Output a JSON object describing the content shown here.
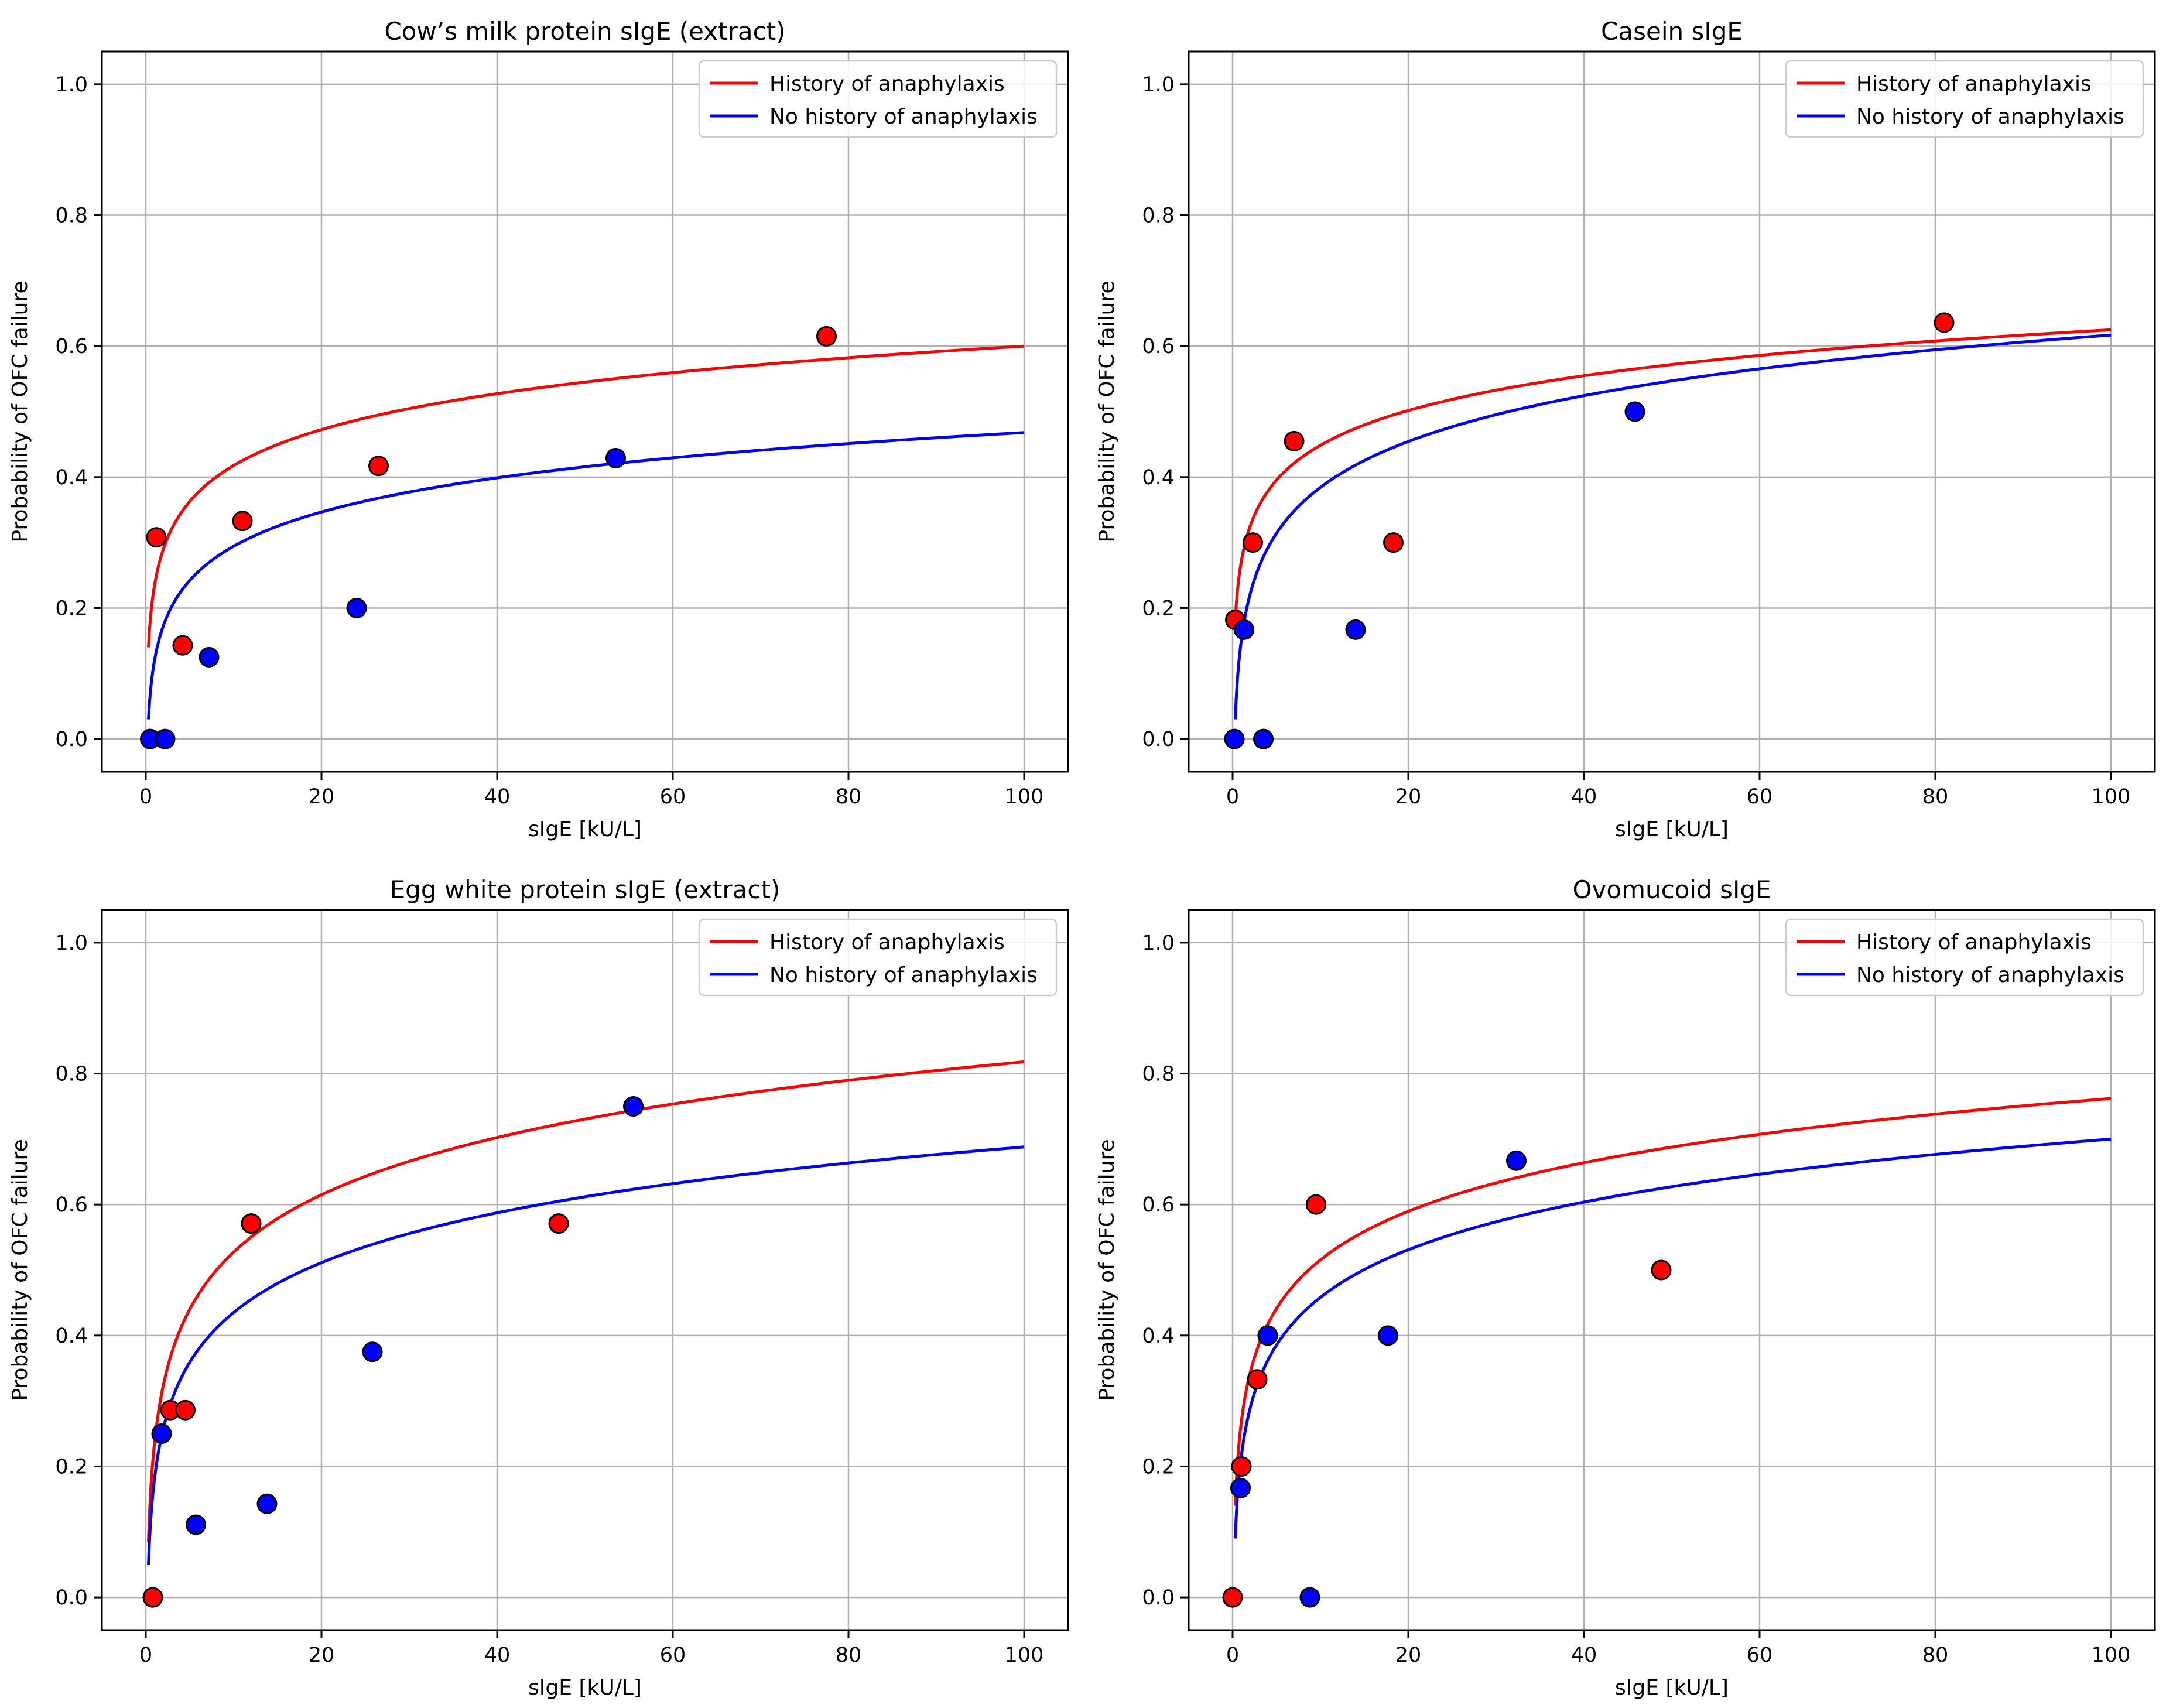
{
  "legend_labels": [
    "History of anaphylaxis",
    "No history of anaphylaxis"
  ],
  "colors": {
    "anaphylaxis": "#ff0000",
    "no_anaphylaxis": "#0000ff",
    "grid": "#b0b0b0",
    "marker_edge": "#000000"
  },
  "chart_data": [
    {
      "type": "scatter",
      "title": "Cow’s milk protein sIgE (extract)",
      "xlabel": "sIgE [kU/L]",
      "ylabel": "Probability of OFC failure",
      "xlim": [
        -5,
        105
      ],
      "ylim": [
        -0.05,
        1.05
      ],
      "xticks": [
        0,
        20,
        40,
        60,
        80,
        100
      ],
      "yticks": [
        0.0,
        0.2,
        0.4,
        0.6,
        0.8,
        1.0
      ],
      "grid": true,
      "legend_position": "top-right",
      "series": [
        {
          "name": "History of anaphylaxis",
          "color": "#ff0000",
          "points": [
            [
              1.2,
              0.308
            ],
            [
              4.2,
              0.143
            ],
            [
              11.0,
              0.333
            ],
            [
              26.5,
              0.417
            ],
            [
              77.5,
              0.615
            ]
          ],
          "curve": {
            "x0": 0.3,
            "x1": 100,
            "y_at_x0": 0.14,
            "y_at_x1": 0.6
          }
        },
        {
          "name": "No history of anaphylaxis",
          "color": "#0000ff",
          "points": [
            [
              0.5,
              0.0
            ],
            [
              2.2,
              0.0
            ],
            [
              7.2,
              0.125
            ],
            [
              24.0,
              0.2
            ],
            [
              53.5,
              0.429
            ]
          ],
          "curve": {
            "x0": 0.3,
            "x1": 100,
            "y_at_x0": 0.03,
            "y_at_x1": 0.468
          }
        }
      ]
    },
    {
      "type": "scatter",
      "title": "Casein sIgE",
      "xlabel": "sIgE [kU/L]",
      "ylabel": "Probability of OFC failure",
      "xlim": [
        -5,
        105
      ],
      "ylim": [
        -0.05,
        1.05
      ],
      "xticks": [
        0,
        20,
        40,
        60,
        80,
        100
      ],
      "yticks": [
        0.0,
        0.2,
        0.4,
        0.6,
        0.8,
        1.0
      ],
      "grid": true,
      "legend_position": "top-right",
      "series": [
        {
          "name": "History of anaphylaxis",
          "color": "#ff0000",
          "points": [
            [
              0.3,
              0.182
            ],
            [
              2.3,
              0.3
            ],
            [
              7.0,
              0.455
            ],
            [
              18.3,
              0.3
            ],
            [
              81.0,
              0.636
            ]
          ],
          "curve": {
            "x0": 0.3,
            "x1": 100,
            "y_at_x0": 0.18,
            "y_at_x1": 0.625
          }
        },
        {
          "name": "No history of anaphylaxis",
          "color": "#0000ff",
          "points": [
            [
              0.2,
              0.0
            ],
            [
              1.3,
              0.167
            ],
            [
              3.5,
              0.0
            ],
            [
              14.0,
              0.167
            ],
            [
              45.8,
              0.5
            ]
          ],
          "curve": {
            "x0": 0.3,
            "x1": 100,
            "y_at_x0": 0.03,
            "y_at_x1": 0.617
          }
        }
      ]
    },
    {
      "type": "scatter",
      "title": "Egg white protein sIgE (extract)",
      "xlabel": "sIgE [kU/L]",
      "ylabel": "Probability of OFC failure",
      "xlim": [
        -5,
        105
      ],
      "ylim": [
        -0.05,
        1.05
      ],
      "xticks": [
        0,
        20,
        40,
        60,
        80,
        100
      ],
      "yticks": [
        0.0,
        0.2,
        0.4,
        0.6,
        0.8,
        1.0
      ],
      "grid": true,
      "legend_position": "top-right",
      "series": [
        {
          "name": "History of anaphylaxis",
          "color": "#ff0000",
          "points": [
            [
              0.8,
              0.0
            ],
            [
              2.8,
              0.286
            ],
            [
              4.5,
              0.286
            ],
            [
              12.0,
              0.571
            ],
            [
              47.0,
              0.571
            ]
          ],
          "curve": {
            "x0": 0.3,
            "x1": 100,
            "y_at_x0": 0.085,
            "y_at_x1": 0.818
          }
        },
        {
          "name": "No history of anaphylaxis",
          "color": "#0000ff",
          "points": [
            [
              1.8,
              0.25
            ],
            [
              5.7,
              0.111
            ],
            [
              13.8,
              0.143
            ],
            [
              25.8,
              0.375
            ],
            [
              55.5,
              0.75
            ]
          ],
          "curve": {
            "x0": 0.3,
            "x1": 100,
            "y_at_x0": 0.05,
            "y_at_x1": 0.688
          }
        }
      ]
    },
    {
      "type": "scatter",
      "title": "Ovomucoid sIgE",
      "xlabel": "sIgE [kU/L]",
      "ylabel": "Probability of OFC failure",
      "xlim": [
        -5,
        105
      ],
      "ylim": [
        -0.05,
        1.05
      ],
      "xticks": [
        0,
        20,
        40,
        60,
        80,
        100
      ],
      "yticks": [
        0.0,
        0.2,
        0.4,
        0.6,
        0.8,
        1.0
      ],
      "grid": true,
      "legend_position": "top-right",
      "series": [
        {
          "name": "History of anaphylaxis",
          "color": "#ff0000",
          "points": [
            [
              0.0,
              0.0
            ],
            [
              1.0,
              0.2
            ],
            [
              2.8,
              0.333
            ],
            [
              9.5,
              0.6
            ],
            [
              48.8,
              0.5
            ]
          ],
          "curve": {
            "x0": 0.3,
            "x1": 100,
            "y_at_x0": 0.14,
            "y_at_x1": 0.762
          }
        },
        {
          "name": "No history of anaphylaxis",
          "color": "#0000ff",
          "points": [
            [
              0.9,
              0.167
            ],
            [
              4.0,
              0.4
            ],
            [
              8.8,
              0.0
            ],
            [
              17.7,
              0.4
            ],
            [
              32.3,
              0.667
            ]
          ],
          "curve": {
            "x0": 0.3,
            "x1": 100,
            "y_at_x0": 0.09,
            "y_at_x1": 0.7
          }
        }
      ]
    }
  ]
}
